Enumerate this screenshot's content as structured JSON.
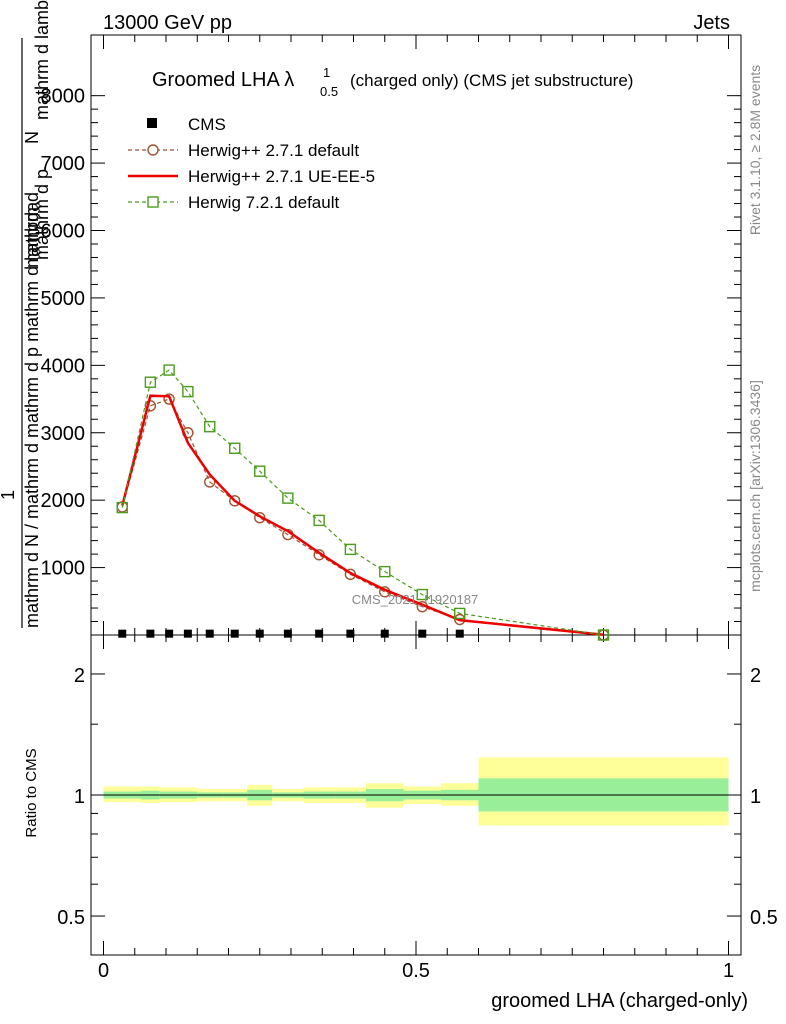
{
  "header": {
    "left": "13000 GeV pp",
    "right": "Jets"
  },
  "side": {
    "rivet": "Rivet 3.1.10, ≥ 2.8M events",
    "mcplots": "mcplots.cern.ch [arXiv:1306.3436]"
  },
  "title": {
    "main": "Groomed LHA λ",
    "sup": "1",
    "sub": "0.5",
    "rest": " (charged only) (CMS jet substructure)"
  },
  "ylabel": {
    "num_a": "mathrm d",
    "num_b": "N",
    "num_c": "mathrm d p",
    "num_d": "mathrm d lambda",
    "den_a": "1",
    "den_b": "mathrm d N",
    "den_c": "mathrm d N / mathrm d mathrm d p mathrm d lambda"
  },
  "watermark": "CMS_2021_I1920187",
  "ratio_ylabel": "Ratio to CMS",
  "xlabel": "groomed LHA (charged-only)",
  "legend": [
    {
      "label": "CMS",
      "color": "#000000",
      "style": "square"
    },
    {
      "label": "Herwig++ 2.7.1 default",
      "color": "#a0522d",
      "style": "circle-dashed"
    },
    {
      "label": "Herwig++ 2.7.1 UE-EE-5",
      "color": "#ee0000",
      "style": "solid"
    },
    {
      "label": "Herwig 7.2.1 default",
      "color": "#4a9c1a",
      "style": "square-open-dashed"
    }
  ],
  "chart_data": {
    "type": "line",
    "xlim": [
      -0.02,
      1.02
    ],
    "ylim": [
      0,
      8900
    ],
    "yticks": [
      1000,
      2000,
      3000,
      4000,
      5000,
      6000,
      7000,
      8000
    ],
    "yticklabels": [
      "1000",
      "2000",
      "3000",
      "4000",
      "5000",
      "6000",
      "7000",
      "8000"
    ],
    "xticks": [
      0,
      0.5,
      1
    ],
    "xticklabels": [
      "0",
      "0.5",
      "1"
    ],
    "ratio_ylim": [
      0.4,
      2.5
    ],
    "ratio_yticks": [
      0.5,
      1,
      2
    ],
    "ratio_yticklabels": [
      "0.5",
      "1",
      "2"
    ],
    "series": [
      {
        "name": "CMS",
        "x": [
          0.03,
          0.075,
          0.105,
          0.135,
          0.17,
          0.21,
          0.25,
          0.295,
          0.345,
          0.395,
          0.45,
          0.51,
          0.57
        ],
        "y": [
          5,
          5,
          5,
          5,
          5,
          5,
          5,
          5,
          5,
          5,
          5,
          5,
          5
        ]
      },
      {
        "name": "Herwig++ 2.7.1 default",
        "x": [
          0.03,
          0.075,
          0.105,
          0.135,
          0.17,
          0.21,
          0.25,
          0.295,
          0.345,
          0.395,
          0.45,
          0.51,
          0.57,
          0.8
        ],
        "y": [
          1900,
          3400,
          3500,
          3000,
          2270,
          1990,
          1740,
          1490,
          1190,
          900,
          640,
          420,
          230,
          0
        ]
      },
      {
        "name": "Herwig++ 2.7.1 UE-EE-5",
        "x": [
          0.03,
          0.075,
          0.105,
          0.135,
          0.17,
          0.21,
          0.25,
          0.295,
          0.345,
          0.395,
          0.45,
          0.51,
          0.57,
          0.8
        ],
        "y": [
          1920,
          3550,
          3540,
          2850,
          2380,
          1990,
          1760,
          1540,
          1220,
          920,
          670,
          450,
          220,
          5
        ]
      },
      {
        "name": "Herwig 7.2.1 default",
        "x": [
          0.03,
          0.075,
          0.105,
          0.135,
          0.17,
          0.21,
          0.25,
          0.295,
          0.345,
          0.395,
          0.45,
          0.51,
          0.57,
          0.8
        ],
        "y": [
          1890,
          3750,
          3930,
          3610,
          3090,
          2770,
          2430,
          2030,
          1700,
          1270,
          940,
          600,
          320,
          0
        ]
      }
    ],
    "ratio_bands": [
      {
        "x0": 0.0,
        "x1": 0.06,
        "inner": [
          0.98,
          1.02
        ],
        "outer": [
          0.96,
          1.05
        ]
      },
      {
        "x0": 0.06,
        "x1": 0.09,
        "inner": [
          0.975,
          1.025
        ],
        "outer": [
          0.955,
          1.05
        ]
      },
      {
        "x0": 0.09,
        "x1": 0.12,
        "inner": [
          0.98,
          1.02
        ],
        "outer": [
          0.96,
          1.045
        ]
      },
      {
        "x0": 0.12,
        "x1": 0.15,
        "inner": [
          0.98,
          1.02
        ],
        "outer": [
          0.96,
          1.045
        ]
      },
      {
        "x0": 0.15,
        "x1": 0.19,
        "inner": [
          0.985,
          1.015
        ],
        "outer": [
          0.965,
          1.035
        ]
      },
      {
        "x0": 0.19,
        "x1": 0.23,
        "inner": [
          0.985,
          1.015
        ],
        "outer": [
          0.965,
          1.035
        ]
      },
      {
        "x0": 0.23,
        "x1": 0.27,
        "inner": [
          0.97,
          1.03
        ],
        "outer": [
          0.94,
          1.06
        ]
      },
      {
        "x0": 0.27,
        "x1": 0.32,
        "inner": [
          0.985,
          1.015
        ],
        "outer": [
          0.965,
          1.035
        ]
      },
      {
        "x0": 0.32,
        "x1": 0.37,
        "inner": [
          0.98,
          1.02
        ],
        "outer": [
          0.955,
          1.045
        ]
      },
      {
        "x0": 0.37,
        "x1": 0.42,
        "inner": [
          0.98,
          1.02
        ],
        "outer": [
          0.955,
          1.045
        ]
      },
      {
        "x0": 0.42,
        "x1": 0.48,
        "inner": [
          0.965,
          1.035
        ],
        "outer": [
          0.93,
          1.07
        ]
      },
      {
        "x0": 0.48,
        "x1": 0.54,
        "inner": [
          0.975,
          1.025
        ],
        "outer": [
          0.95,
          1.05
        ]
      },
      {
        "x0": 0.54,
        "x1": 0.6,
        "inner": [
          0.97,
          1.03
        ],
        "outer": [
          0.94,
          1.07
        ]
      },
      {
        "x0": 0.6,
        "x1": 1.0,
        "inner": [
          0.91,
          1.1
        ],
        "outer": [
          0.84,
          1.24
        ]
      }
    ]
  }
}
